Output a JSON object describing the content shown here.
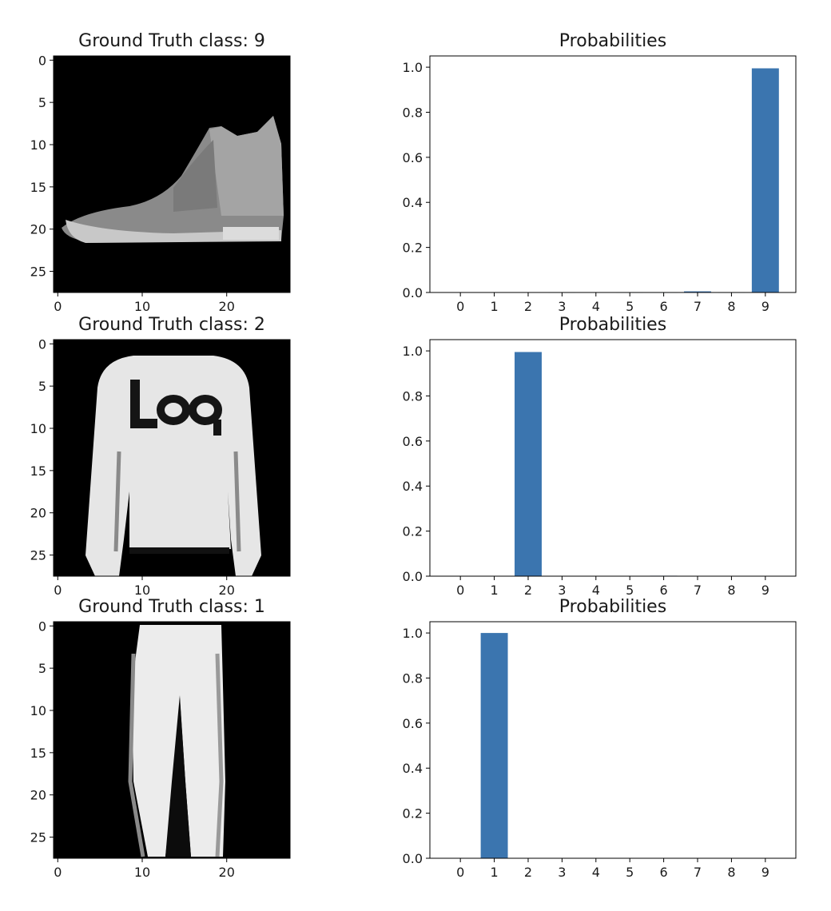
{
  "figure": {
    "rows": [
      {
        "image_panel": {
          "title": "Ground Truth class: 9",
          "xticks": [
            "0",
            "10",
            "20"
          ],
          "yticks": [
            "0",
            "5",
            "10",
            "15",
            "20",
            "25"
          ],
          "depicts": "sneaker"
        },
        "chart_data": {
          "type": "bar",
          "title": "Probabilities",
          "categories": [
            "0",
            "1",
            "2",
            "3",
            "4",
            "5",
            "6",
            "7",
            "8",
            "9"
          ],
          "values": [
            0,
            0,
            0,
            0.001,
            0,
            0.001,
            0.001,
            0.005,
            0.001,
            0.995
          ],
          "yticks": [
            "0.0",
            "0.2",
            "0.4",
            "0.6",
            "0.8",
            "1.0"
          ],
          "ylim": [
            0,
            1.05
          ],
          "xlim": [
            -0.9,
            9.9
          ],
          "bar_color": "#3b75af",
          "grid": false
        }
      },
      {
        "image_panel": {
          "title": "Ground Truth class: 2",
          "xticks": [
            "0",
            "10",
            "20"
          ],
          "yticks": [
            "0",
            "5",
            "10",
            "15",
            "20",
            "25"
          ],
          "depicts": "pullover"
        },
        "chart_data": {
          "type": "bar",
          "title": "Probabilities",
          "categories": [
            "0",
            "1",
            "2",
            "3",
            "4",
            "5",
            "6",
            "7",
            "8",
            "9"
          ],
          "values": [
            0,
            0,
            0.995,
            0,
            0,
            0,
            0.002,
            0,
            0,
            0
          ],
          "yticks": [
            "0.0",
            "0.2",
            "0.4",
            "0.6",
            "0.8",
            "1.0"
          ],
          "ylim": [
            0,
            1.05
          ],
          "xlim": [
            -0.9,
            9.9
          ],
          "bar_color": "#3b75af",
          "grid": false
        }
      },
      {
        "image_panel": {
          "title": "Ground Truth class: 1",
          "xticks": [
            "0",
            "10",
            "20"
          ],
          "yticks": [
            "0",
            "5",
            "10",
            "15",
            "20",
            "25"
          ],
          "depicts": "trouser"
        },
        "chart_data": {
          "type": "bar",
          "title": "Probabilities",
          "categories": [
            "0",
            "1",
            "2",
            "3",
            "4",
            "5",
            "6",
            "7",
            "8",
            "9"
          ],
          "values": [
            0,
            1.0,
            0,
            0,
            0,
            0,
            0,
            0,
            0,
            0
          ],
          "yticks": [
            "0.0",
            "0.2",
            "0.4",
            "0.6",
            "0.8",
            "1.0"
          ],
          "ylim": [
            0,
            1.05
          ],
          "xlim": [
            -0.9,
            9.9
          ],
          "bar_color": "#3b75af",
          "grid": false
        }
      }
    ]
  }
}
